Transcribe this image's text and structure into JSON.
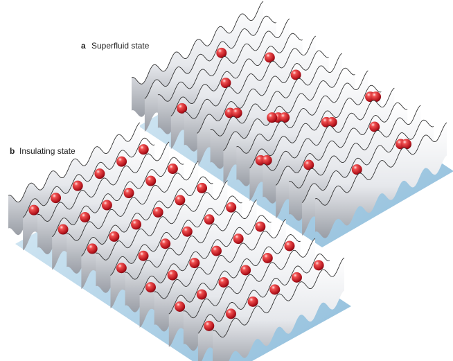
{
  "panels": [
    {
      "label": "a",
      "title": "Superfluid state"
    },
    {
      "label": "b",
      "title": "Insulating state"
    }
  ]
}
